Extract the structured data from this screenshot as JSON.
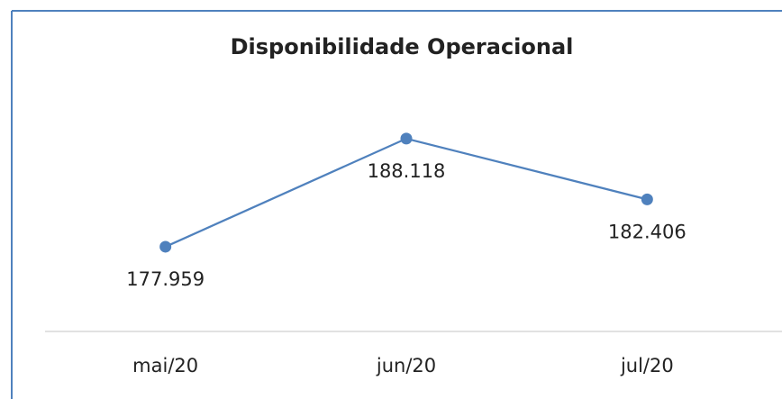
{
  "chart_data": {
    "type": "line",
    "title": "Disponibilidade Operacional",
    "categories": [
      "mai/20",
      "jun/20",
      "jul/20"
    ],
    "values": [
      177959,
      188118,
      182406
    ],
    "value_labels": [
      "177.959",
      "188.118",
      "182.406"
    ],
    "color": "#4f81bd",
    "ylim": [
      170000,
      192000
    ]
  }
}
